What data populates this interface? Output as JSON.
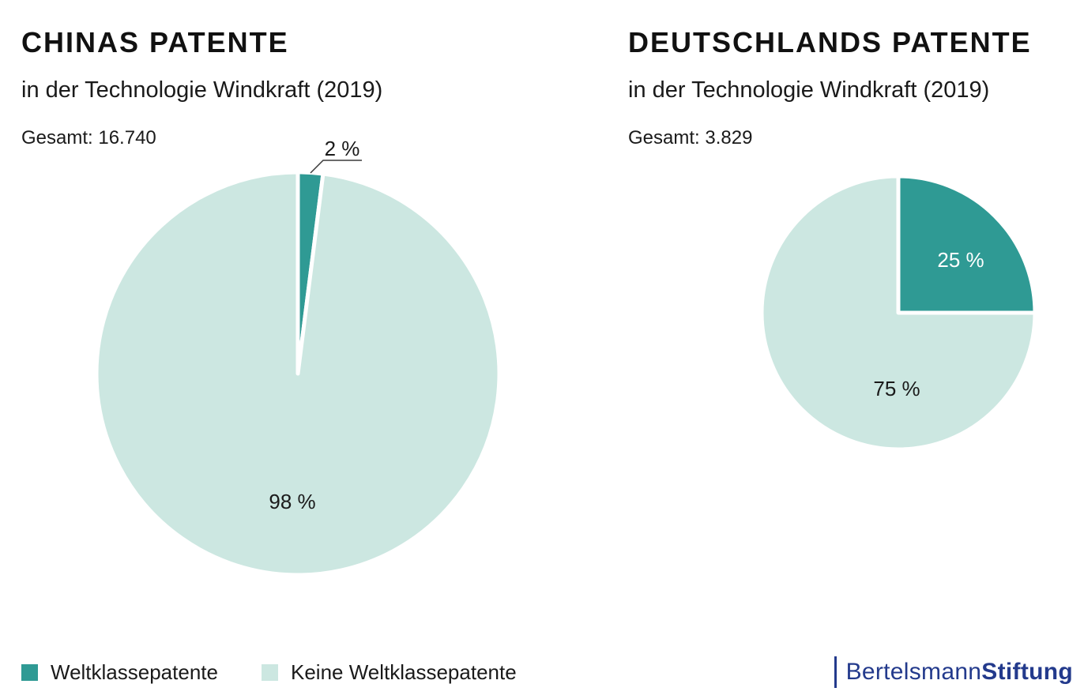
{
  "page": {
    "background": "#ffffff"
  },
  "chart_data": [
    {
      "type": "pie",
      "country": "China",
      "title": "CHINAS PATENTE",
      "subtitle": "in der Technologie Windkraft (2019)",
      "total_label": "Gesamt: 16.740",
      "total_value": 16740,
      "year": 2019,
      "categories": [
        "Weltklassepatente",
        "Keine Weltklassepatente"
      ],
      "values_pct": [
        2,
        98
      ],
      "slice_labels": [
        "2 %",
        "98 %"
      ],
      "label_placement": [
        "outside-callout",
        "inside"
      ],
      "start_angle_deg": 0,
      "direction": "clockwise"
    },
    {
      "type": "pie",
      "country": "Deutschland",
      "title": "DEUTSCHLANDS PATENTE",
      "subtitle": "in der Technologie Windkraft (2019)",
      "total_label": "Gesamt: 3.829",
      "total_value": 3829,
      "year": 2019,
      "categories": [
        "Weltklassepatente",
        "Keine Weltklassepatente"
      ],
      "values_pct": [
        25,
        75
      ],
      "slice_labels": [
        "25 %",
        "75 %"
      ],
      "label_placement": [
        "inside",
        "inside"
      ],
      "start_angle_deg": 0,
      "direction": "clockwise"
    }
  ],
  "legend": {
    "position": "bottom-left",
    "items": [
      {
        "label": "Weltklassepatente",
        "color": "#2f9a94"
      },
      {
        "label": "Keine Weltklassepatente",
        "color": "#cce7e1"
      }
    ]
  },
  "logo": {
    "text_regular": "Bertelsmann",
    "text_bold": "Stiftung",
    "color": "#233a8c"
  },
  "colors": {
    "slice_world_class": "#2f9a94",
    "slice_not_world_class": "#cce7e1",
    "label_dark": "#1a1a1a",
    "label_on_teal": "#ffffff",
    "callout_line": "#3a3a3a",
    "separator": "#ffffff",
    "logo_blue": "#233a8c",
    "background": "#ffffff"
  }
}
